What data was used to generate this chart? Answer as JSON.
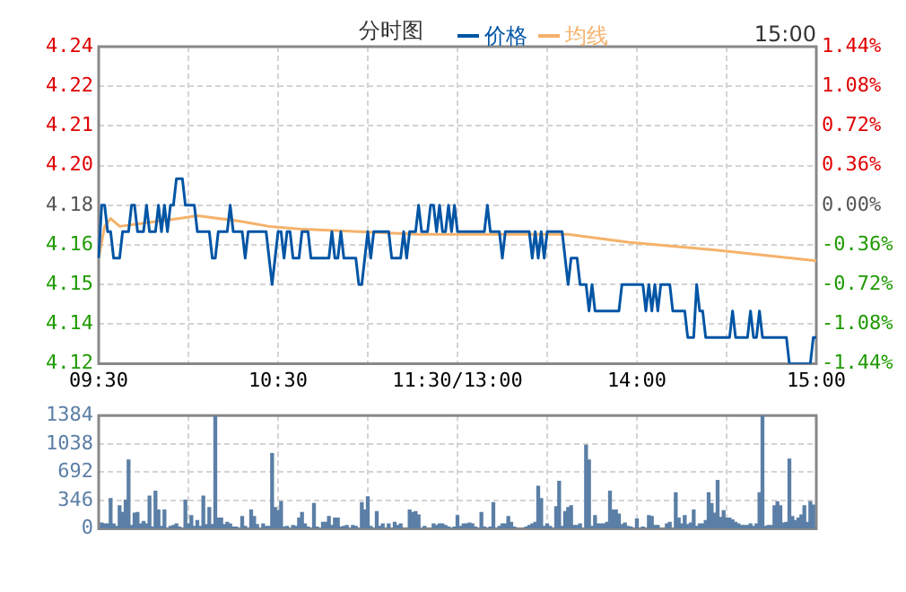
{
  "chart_data": [
    {
      "type": "line",
      "title": "分时图",
      "annotations": [
        "15:00"
      ],
      "legend": "top",
      "grid": true,
      "marker": "none",
      "line_style": "solid",
      "categories": [
        "09:30",
        null,
        null,
        null,
        null,
        null,
        null,
        null,
        null,
        null,
        null,
        null,
        null,
        null,
        null,
        null,
        null,
        null,
        null,
        null,
        null,
        null,
        null,
        null,
        null,
        null,
        null,
        null,
        null,
        null,
        null,
        null,
        null,
        null,
        null,
        null,
        null,
        null,
        null,
        null,
        null,
        null,
        null,
        null,
        null,
        null,
        null,
        null,
        null,
        null,
        null,
        null,
        null,
        null,
        null,
        null,
        null,
        null,
        null,
        null,
        "10:30",
        null,
        null,
        null,
        null,
        null,
        null,
        null,
        null,
        null,
        null,
        null,
        null,
        null,
        null,
        null,
        null,
        null,
        null,
        null,
        null,
        null,
        null,
        null,
        null,
        null,
        null,
        null,
        null,
        null,
        null,
        null,
        null,
        null,
        null,
        null,
        null,
        null,
        null,
        null,
        null,
        null,
        null,
        null,
        null,
        null,
        null,
        null,
        null,
        null,
        null,
        null,
        null,
        null,
        null,
        null,
        null,
        null,
        null,
        null,
        "11:30/13:00",
        null,
        null,
        null,
        null,
        null,
        null,
        null,
        null,
        null,
        null,
        null,
        null,
        null,
        null,
        null,
        null,
        null,
        null,
        null,
        null,
        null,
        null,
        null,
        null,
        null,
        null,
        null,
        null,
        null,
        null,
        null,
        null,
        null,
        null,
        null,
        null,
        null,
        null,
        null,
        null,
        null,
        null,
        null,
        null,
        null,
        null,
        null,
        null,
        null,
        null,
        null,
        null,
        null,
        null,
        null,
        null,
        null,
        null,
        null,
        "14:00",
        null,
        null,
        null,
        null,
        null,
        null,
        null,
        null,
        null,
        null,
        null,
        null,
        null,
        null,
        null,
        null,
        null,
        null,
        null,
        null,
        null,
        null,
        null,
        null,
        null,
        null,
        null,
        null,
        null,
        null,
        null,
        null,
        null,
        null,
        null,
        null,
        null,
        null,
        null,
        null,
        null,
        null,
        null,
        null,
        null,
        null,
        null,
        null,
        null,
        null,
        null,
        null,
        null,
        null,
        null,
        null,
        null,
        null,
        null,
        "15:00"
      ],
      "ylim": [
        4.12,
        4.24
      ],
      "yticks": [
        4.12,
        {
          "value": 4.135,
          "label": "4.14"
        },
        4.15,
        {
          "value": 4.165,
          "label": "4.16"
        },
        4.18,
        {
          "value": 4.195,
          "label": "4.20"
        },
        4.21,
        {
          "value": 4.225,
          "label": "4.22"
        },
        4.24
      ],
      "y2lim": [
        -1.44,
        1.44
      ],
      "y2ticks": [
        {
          "value": -1.44,
          "label": "-1.44%"
        },
        {
          "value": -1.08,
          "label": "-1.08%"
        },
        {
          "value": -0.72,
          "label": "-0.72%"
        },
        {
          "value": -0.36,
          "label": "-0.36%"
        },
        {
          "value": 0,
          "label": "0.00%"
        },
        {
          "value": 0.36,
          "label": "0.36%"
        },
        {
          "value": 0.72,
          "label": "0.72%"
        },
        {
          "value": 1.08,
          "label": "1.08%"
        },
        {
          "value": 1.44,
          "label": "1.44%"
        }
      ],
      "series": [
        {
          "name": "价格",
          "color": "#0055a5",
          "values": [
            4.16,
            4.18,
            4.18,
            4.17,
            4.17,
            4.16,
            4.16,
            4.16,
            4.17,
            4.17,
            4.17,
            4.18,
            4.18,
            4.17,
            4.17,
            4.17,
            4.18,
            4.17,
            4.17,
            4.17,
            4.18,
            4.17,
            4.18,
            4.17,
            4.18,
            4.18,
            4.19,
            4.19,
            4.19,
            4.18,
            4.18,
            4.18,
            4.18,
            4.17,
            4.17,
            4.17,
            4.17,
            4.17,
            4.16,
            4.16,
            4.17,
            4.17,
            4.17,
            4.17,
            4.18,
            4.17,
            4.17,
            4.17,
            4.17,
            4.16,
            4.17,
            4.17,
            4.17,
            4.17,
            4.17,
            4.17,
            4.17,
            4.16,
            4.15,
            4.16,
            4.17,
            4.17,
            4.16,
            4.17,
            4.17,
            4.16,
            4.16,
            4.16,
            4.17,
            4.17,
            4.17,
            4.16,
            4.16,
            4.16,
            4.16,
            4.16,
            4.16,
            4.16,
            4.17,
            4.16,
            4.16,
            4.17,
            4.16,
            4.16,
            4.16,
            4.16,
            4.16,
            4.15,
            4.15,
            4.16,
            4.17,
            4.16,
            4.17,
            4.17,
            4.17,
            4.17,
            4.17,
            4.17,
            4.16,
            4.16,
            4.16,
            4.16,
            4.17,
            4.16,
            4.17,
            4.17,
            4.17,
            4.18,
            4.17,
            4.17,
            4.17,
            4.18,
            4.18,
            4.17,
            4.18,
            4.17,
            4.17,
            4.18,
            4.17,
            4.18,
            4.17,
            4.17,
            4.17,
            4.17,
            4.17,
            4.17,
            4.17,
            4.17,
            4.17,
            4.17,
            4.18,
            4.17,
            4.17,
            4.17,
            4.17,
            4.16,
            4.17,
            4.17,
            4.17,
            4.17,
            4.17,
            4.17,
            4.17,
            4.17,
            4.17,
            4.16,
            4.17,
            4.16,
            4.17,
            4.16,
            4.17,
            4.17,
            4.17,
            4.17,
            4.17,
            4.17,
            4.16,
            4.15,
            4.16,
            4.16,
            4.16,
            4.15,
            4.15,
            4.15,
            4.14,
            4.15,
            4.14,
            4.14,
            4.14,
            4.14,
            4.14,
            4.14,
            4.14,
            4.14,
            4.14,
            4.15,
            4.15,
            4.15,
            4.15,
            4.15,
            4.15,
            4.15,
            4.15,
            4.14,
            4.15,
            4.14,
            4.15,
            4.14,
            4.15,
            4.15,
            4.15,
            4.15,
            4.14,
            4.14,
            4.14,
            4.14,
            4.14,
            4.13,
            4.13,
            4.13,
            4.15,
            4.14,
            4.14,
            4.13,
            4.13,
            4.13,
            4.13,
            4.13,
            4.13,
            4.13,
            4.13,
            4.13,
            4.14,
            4.13,
            4.13,
            4.13,
            4.13,
            4.13,
            4.14,
            4.13,
            4.13,
            4.14,
            4.13,
            4.13,
            4.13,
            4.13,
            4.13,
            4.13,
            4.13,
            4.13,
            4.13,
            4.12,
            4.12,
            4.12,
            4.12,
            4.12,
            4.12,
            4.12,
            4.12,
            4.13,
            4.13
          ]
        },
        {
          "name": "均线",
          "color": "#f5b26b",
          "values": [
            4.16,
            null,
            4.172,
            null,
            4.175,
            null,
            null,
            4.172,
            null,
            null,
            null,
            null,
            null,
            null,
            null,
            null,
            null,
            null,
            null,
            null,
            null,
            null,
            null,
            null,
            null,
            null,
            null,
            4.175,
            null,
            null,
            null,
            null,
            null,
            4.176,
            null,
            null,
            null,
            null,
            null,
            null,
            null,
            null,
            null,
            null,
            null,
            null,
            null,
            4.174,
            null,
            null,
            null,
            null,
            null,
            null,
            null,
            null,
            null,
            4.172,
            null,
            null,
            null,
            null,
            null,
            null,
            null,
            null,
            null,
            4.171,
            null,
            null,
            null,
            null,
            null,
            null,
            null,
            null,
            null,
            null,
            null,
            null,
            null,
            null,
            null,
            null,
            null,
            null,
            null,
            4.17,
            null,
            null,
            null,
            null,
            null,
            null,
            null,
            null,
            null,
            null,
            null,
            null,
            null,
            null,
            null,
            null,
            null,
            null,
            null,
            4.169,
            null,
            null,
            null,
            null,
            null,
            null,
            null,
            null,
            null,
            null,
            null,
            null,
            null,
            null,
            null,
            4.169,
            null,
            null,
            null,
            null,
            null,
            null,
            null,
            null,
            null,
            null,
            null,
            null,
            null,
            null,
            null,
            null,
            null,
            null,
            null,
            null,
            null,
            null,
            null,
            null,
            null,
            null,
            null,
            null,
            null,
            null,
            null,
            null,
            null,
            4.169,
            null,
            null,
            null,
            null,
            null,
            null,
            null,
            null,
            null,
            null,
            null,
            null,
            null,
            null,
            null,
            null,
            null,
            null,
            null,
            4.166,
            null,
            null,
            null,
            null,
            null,
            null,
            null,
            null,
            null,
            null,
            null,
            null,
            null,
            null,
            null,
            null,
            null,
            null,
            null,
            null,
            null,
            null,
            null,
            null,
            null,
            null,
            null,
            null,
            null,
            4.163,
            null,
            null,
            null,
            null,
            null,
            null,
            null,
            null,
            null,
            null,
            null,
            null,
            null,
            null,
            null,
            null,
            null,
            null,
            null,
            null,
            null,
            null,
            null,
            null,
            null,
            null,
            null,
            null,
            null,
            null,
            null,
            null,
            4.159
          ]
        }
      ]
    },
    {
      "type": "bar",
      "color": "#5b7fa6",
      "grid": true,
      "categories": [
        null,
        null,
        null,
        null,
        null,
        null,
        null,
        null,
        null,
        null,
        null,
        null,
        null,
        null,
        null,
        null,
        null,
        null,
        null,
        null,
        null,
        null,
        null,
        null,
        null,
        null,
        null,
        null,
        null,
        null,
        null,
        null,
        null,
        null,
        null,
        null,
        null,
        null,
        null,
        null,
        null,
        null,
        null,
        null,
        null,
        null,
        null,
        null,
        null,
        null,
        null,
        null,
        null,
        null,
        null,
        null,
        null,
        null,
        null,
        null,
        null,
        null,
        null,
        null,
        null,
        null,
        null,
        null,
        null,
        null,
        null,
        null,
        null,
        null,
        null,
        null,
        null,
        null,
        null,
        null,
        null,
        null,
        null,
        null,
        null,
        null,
        null,
        null,
        null,
        null,
        null,
        null,
        null,
        null,
        null,
        null,
        null,
        null,
        null,
        null,
        null,
        null,
        null,
        null,
        null,
        null,
        null,
        null,
        null,
        null,
        null,
        null,
        null,
        null,
        null,
        null,
        null,
        null,
        null,
        null,
        null,
        null,
        null,
        null,
        null,
        null,
        null,
        null,
        null,
        null,
        null,
        null,
        null,
        null,
        null,
        null,
        null,
        null,
        null,
        null,
        null,
        null,
        null,
        null,
        null,
        null,
        null,
        null,
        null,
        null,
        null,
        null,
        null,
        null,
        null,
        null,
        null,
        null,
        null,
        null,
        null,
        null,
        null,
        null,
        null,
        null,
        null,
        null,
        null,
        null,
        null,
        null,
        null,
        null,
        null,
        null,
        null,
        null,
        null,
        null,
        null,
        null,
        null,
        null,
        null,
        null,
        null,
        null,
        null,
        null,
        null,
        null,
        null,
        null,
        null,
        null,
        null,
        null,
        null,
        null,
        null,
        null,
        null,
        null,
        null,
        null,
        null,
        null,
        null,
        null,
        null,
        null,
        null,
        null,
        null,
        null,
        null,
        null,
        null,
        null,
        null,
        null,
        null,
        null,
        null,
        null,
        null,
        null,
        null,
        null,
        null,
        null,
        null,
        null,
        null,
        null,
        null,
        null,
        null,
        null,
        null
      ],
      "ylim": [
        0,
        1384
      ],
      "yticks": [
        0,
        346,
        692,
        1038,
        1384
      ],
      "values": [
        null,
        70,
        60,
        60,
        370,
        60,
        30,
        280,
        200,
        350,
        840,
        40,
        190,
        200,
        60,
        90,
        60,
        400,
        20,
        460,
        230,
        30,
        230,
        null,
        30,
        40,
        60,
        20,
        null,
        350,
        60,
        160,
        30,
        100,
        30,
        400,
        50,
        260,
        50,
        1380,
        130,
        130,
        50,
        80,
        60,
        20,
        20,
        null,
        150,
        30,
        null,
        230,
        150,
        50,
        null,
        60,
        30,
        30,
        920,
        260,
        220,
        330,
        20,
        30,
        null,
        40,
        30,
        130,
        200,
        60,
        20,
        null,
        310,
        20,
        null,
        80,
        80,
        150,
        40,
        130,
        130,
        20,
        30,
        40,
        null,
        40,
        30,
        null,
        320,
        230,
        390,
        30,
        null,
        210,
        30,
        60,
        null,
        60,
        null,
        80,
        40,
        60,
        null,
        null,
        230,
        200,
        210,
        170,
        null,
        30,
        null,
        null,
        60,
        40,
        60,
        60,
        40,
        20,
        null,
        20,
        160,
        30,
        60,
        60,
        70,
        60,
        20,
        null,
        200,
        20,
        null,
        20,
        320,
        null,
        30,
        60,
        60,
        150,
        80,
        20,
        null,
        null,
        null,
        20,
        40,
        60,
        80,
        520,
        370,
        30,
        60,
        30,
        null,
        270,
        580,
        30,
        210,
        260,
        280,
        40,
        40,
        60,
        null,
        1020,
        840,
        30,
        160,
        60,
        60,
        60,
        80,
        460,
        230,
        230,
        180,
        50,
        70,
        30,
        20,
        null,
        120,
        null,
        20,
        null,
        160,
        150,
        40,
        40,
        null,
        null,
        60,
        80,
        null,
        440,
        130,
        60,
        160,
        50,
        70,
        230,
        30,
        60,
        60,
        100,
        440,
        310,
        190,
        590,
        140,
        220,
        130,
        130,
        110,
        80,
        60,
        40,
        40,
        40,
        60,
        30,
        60,
        440,
        1380,
        30,
        40,
        40,
        280,
        330,
        280,
        70,
        80,
        850,
        150,
        100,
        130,
        170,
        280,
        80,
        330,
        290,
        null
      ]
    }
  ]
}
